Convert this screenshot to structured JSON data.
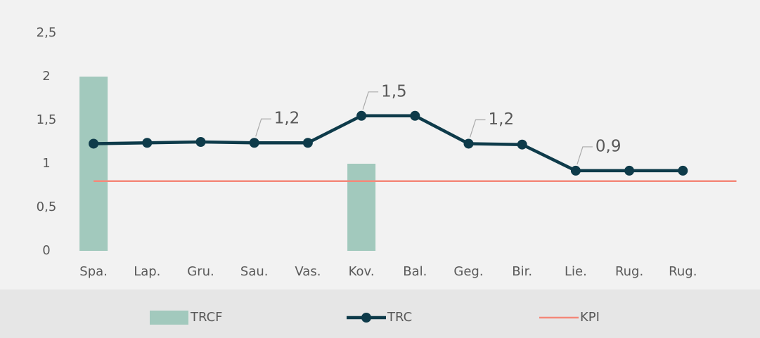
{
  "chart_data": {
    "type": "bar-line",
    "categories": [
      "Spa.",
      "Lap.",
      "Gru.",
      "Sau.",
      "Vas.",
      "Kov.",
      "Bal.",
      "Geg.",
      "Bir.",
      "Lie.",
      "Rug.",
      "Rug."
    ],
    "series": [
      {
        "name": "TRCF",
        "type": "bar",
        "color": "#a2c9bd",
        "values": [
          2,
          null,
          null,
          null,
          null,
          1,
          null,
          null,
          null,
          null,
          null,
          null
        ]
      },
      {
        "name": "TRC",
        "type": "line",
        "color": "#0e3b4a",
        "values": [
          1.23,
          1.24,
          1.25,
          1.24,
          1.24,
          1.55,
          1.55,
          1.23,
          1.22,
          0.92,
          0.92,
          0.92
        ],
        "value_labels": [
          null,
          null,
          null,
          "1,2",
          null,
          "1,5",
          null,
          "1,2",
          null,
          "0,9",
          null,
          null
        ]
      },
      {
        "name": "KPI",
        "type": "hline",
        "color": "#f4897a",
        "value": 0.8
      }
    ],
    "ylim": [
      0,
      2.5
    ],
    "yticks": [
      0,
      {
        "value": 0.5,
        "label": "0,5"
      },
      1,
      {
        "value": 1.5,
        "label": "1,5"
      },
      2,
      {
        "value": 2.5,
        "label": "2,5"
      }
    ],
    "grid": false,
    "legend": "bottom"
  }
}
